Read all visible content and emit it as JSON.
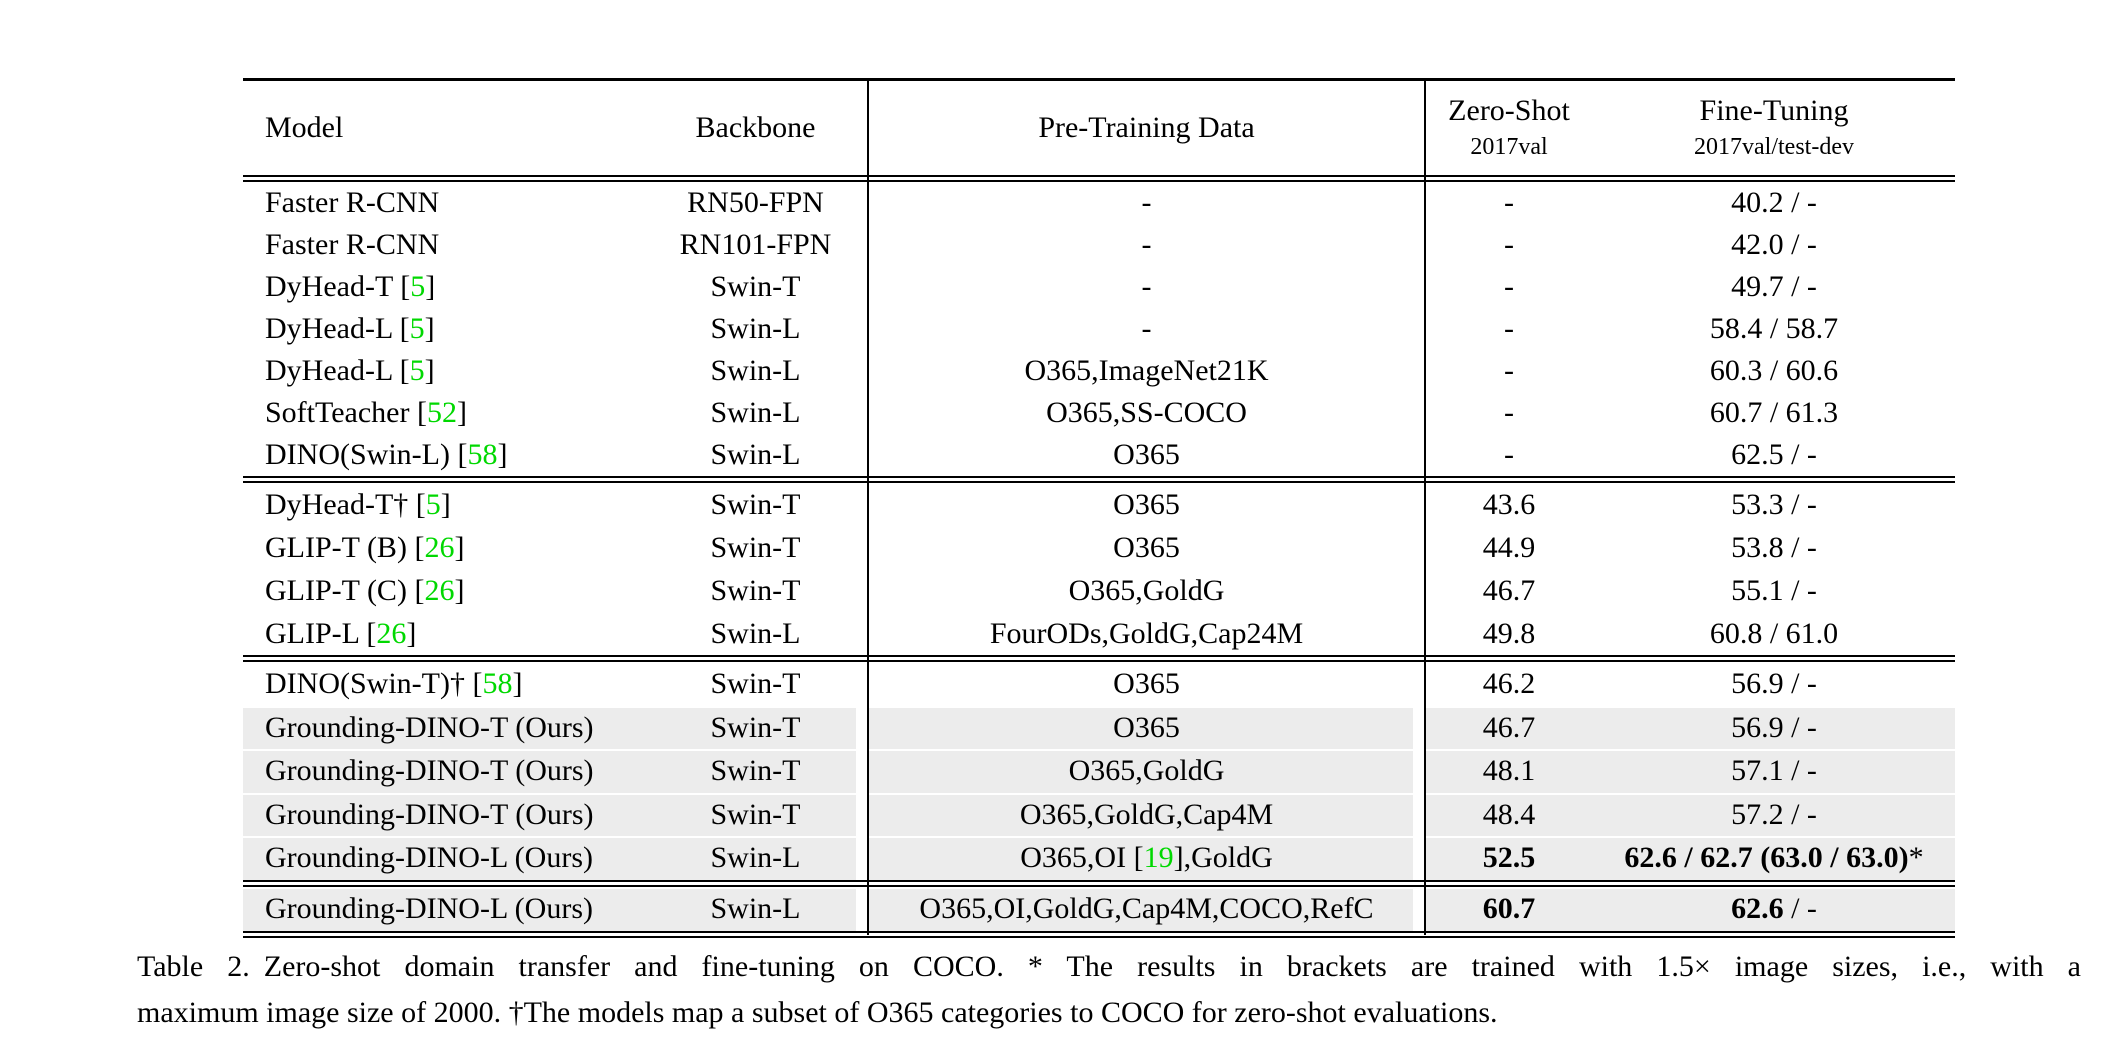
{
  "colors": {
    "cite_green": "#00d800",
    "row_highlight": "#ececec",
    "rule_black": "#000000"
  },
  "header": {
    "columns": [
      {
        "label": "Model"
      },
      {
        "label": "Backbone"
      },
      {
        "label": "Pre-Training Data"
      },
      {
        "label": "Zero-Shot",
        "sublabel": "2017val"
      },
      {
        "label": "Fine-Tuning",
        "sublabel": "2017val/test-dev"
      }
    ]
  },
  "sections": [
    {
      "rows": [
        {
          "model": [
            {
              "t": "Faster R-CNN"
            }
          ],
          "backbone": "RN50-FPN",
          "pretrain": "-",
          "zeroshot": "-",
          "finetune": "40.2 / -",
          "highlight": false
        },
        {
          "model": [
            {
              "t": "Faster R-CNN"
            }
          ],
          "backbone": "RN101-FPN",
          "pretrain": "-",
          "zeroshot": "-",
          "finetune": "42.0 / -",
          "highlight": false
        },
        {
          "model": [
            {
              "t": "DyHead-T "
            },
            {
              "cite": "5"
            }
          ],
          "backbone": "Swin-T",
          "pretrain": "-",
          "zeroshot": "-",
          "finetune": "49.7 / -",
          "highlight": false
        },
        {
          "model": [
            {
              "t": "DyHead-L "
            },
            {
              "cite": "5"
            }
          ],
          "backbone": "Swin-L",
          "pretrain": "-",
          "zeroshot": "-",
          "finetune": "58.4 / 58.7",
          "highlight": false
        },
        {
          "model": [
            {
              "t": "DyHead-L "
            },
            {
              "cite": "5"
            }
          ],
          "backbone": "Swin-L",
          "pretrain": "O365,ImageNet21K",
          "zeroshot": "-",
          "finetune": "60.3 / 60.6",
          "highlight": false
        },
        {
          "model": [
            {
              "t": "SoftTeacher "
            },
            {
              "cite": "52"
            }
          ],
          "backbone": "Swin-L",
          "pretrain": "O365,SS-COCO",
          "zeroshot": "-",
          "finetune": "60.7 / 61.3",
          "highlight": false
        },
        {
          "model": [
            {
              "t": "DINO(Swin-L) "
            },
            {
              "cite": "58"
            }
          ],
          "backbone": "Swin-L",
          "pretrain": "O365",
          "zeroshot": "-",
          "finetune": "62.5 / -",
          "highlight": false
        }
      ]
    },
    {
      "rows": [
        {
          "model": [
            {
              "t": "DyHead-T† "
            },
            {
              "cite": "5"
            }
          ],
          "backbone": "Swin-T",
          "pretrain": "O365",
          "zeroshot": "43.6",
          "finetune": "53.3 / -",
          "highlight": false
        },
        {
          "model": [
            {
              "t": "GLIP-T (B) "
            },
            {
              "cite": "26"
            }
          ],
          "backbone": "Swin-T",
          "pretrain": "O365",
          "zeroshot": "44.9",
          "finetune": "53.8 / -",
          "highlight": false
        },
        {
          "model": [
            {
              "t": "GLIP-T (C) "
            },
            {
              "cite": "26"
            }
          ],
          "backbone": "Swin-T",
          "pretrain": "O365,GoldG",
          "zeroshot": "46.7",
          "finetune": "55.1 / -",
          "highlight": false
        },
        {
          "model": [
            {
              "t": "GLIP-L "
            },
            {
              "cite": "26"
            }
          ],
          "backbone": "Swin-L",
          "pretrain": "FourODs,GoldG,Cap24M",
          "zeroshot": "49.8",
          "finetune": "60.8 / 61.0",
          "highlight": false
        }
      ]
    },
    {
      "rows": [
        {
          "model": [
            {
              "t": "DINO(Swin-T)† "
            },
            {
              "cite": "58"
            }
          ],
          "backbone": "Swin-T",
          "pretrain": "O365",
          "zeroshot": "46.2",
          "finetune": "56.9 / -",
          "highlight": false
        },
        {
          "model": [
            {
              "t": "Grounding-DINO-T (Ours)"
            }
          ],
          "backbone": "Swin-T",
          "pretrain": "O365",
          "zeroshot": "46.7",
          "finetune": "56.9 / -",
          "highlight": true
        },
        {
          "model": [
            {
              "t": "Grounding-DINO-T (Ours)"
            }
          ],
          "backbone": "Swin-T",
          "pretrain": "O365,GoldG",
          "zeroshot": "48.1",
          "finetune": "57.1 / -",
          "highlight": true
        },
        {
          "model": [
            {
              "t": "Grounding-DINO-T (Ours)"
            }
          ],
          "backbone": "Swin-T",
          "pretrain": "O365,GoldG,Cap4M",
          "zeroshot": "48.4",
          "finetune": "57.2 / -",
          "highlight": true
        },
        {
          "model": [
            {
              "t": "Grounding-DINO-L (Ours)"
            }
          ],
          "backbone": "Swin-L",
          "pretrain": [
            {
              "t": "O365,OI "
            },
            {
              "cite": "19"
            },
            {
              "t": ",GoldG"
            }
          ],
          "zeroshot": [
            {
              "t": "52.5",
              "b": true
            }
          ],
          "finetune": [
            {
              "t": "62.6 / 62.7 (63.0 / 63.0)",
              "b": true
            },
            {
              "t": "*"
            }
          ],
          "highlight": true
        }
      ]
    },
    {
      "rows": [
        {
          "model": [
            {
              "t": "Grounding-DINO-L (Ours)"
            }
          ],
          "backbone": "Swin-L",
          "pretrain": "O365,OI,GoldG,Cap4M,COCO,RefC",
          "zeroshot": [
            {
              "t": "60.7",
              "b": true
            }
          ],
          "finetune": [
            {
              "t": "62.6",
              "b": true
            },
            {
              "t": " / -"
            }
          ],
          "highlight": true
        }
      ]
    }
  ],
  "caption": {
    "label": "Table 2.",
    "line1": "Zero-shot domain transfer and fine-tuning on COCO. * The results in brackets are trained with 1.5× image sizes, i.e., with a",
    "line2": "maximum image size of 2000. †The models map a subset of O365 categories to COCO for zero-shot evaluations."
  }
}
